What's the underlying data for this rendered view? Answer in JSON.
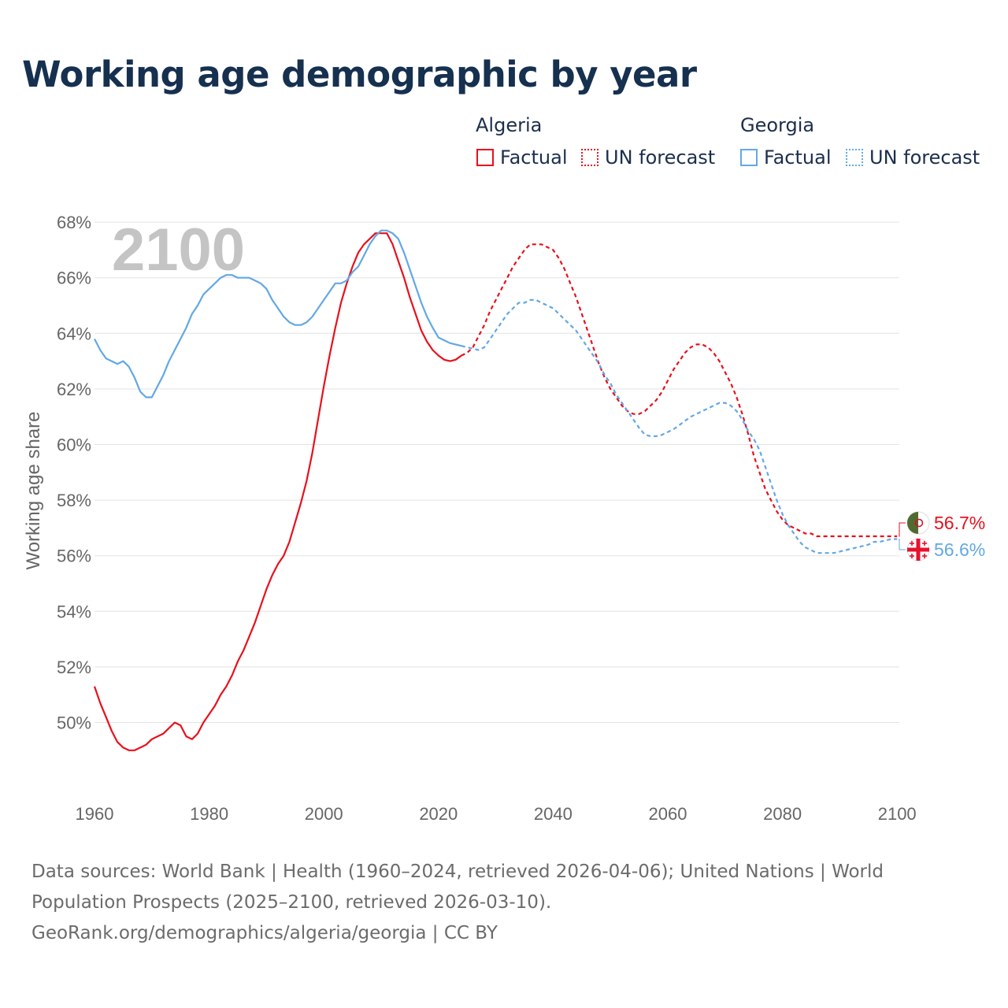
{
  "title": "Working age demographic by year",
  "colors": {
    "algeria": "#e8101c",
    "georgia": "#62a8e5",
    "grid": "#e3e3e3",
    "year_watermark": "#c4c4c4"
  },
  "legend": {
    "algeria": {
      "name": "Algeria",
      "factual": "Factual",
      "forecast": "UN forecast"
    },
    "georgia": {
      "name": "Georgia",
      "factual": "Factual",
      "forecast": "UN forecast"
    }
  },
  "footer": {
    "line1": "Data sources: World Bank | Health (1960–2024, retrieved 2026-04-06); United Nations | World",
    "line2": "Population Prospects (2025–2100, retrieved 2026-03-10).",
    "line3": "GeoRank.org/demographics/algeria/georgia | CC BY"
  },
  "chart_data": {
    "type": "line",
    "current_year_label": "2100",
    "ylabel": "Working age share",
    "xlabel": "",
    "xlim": [
      1960,
      2103
    ],
    "ylim": [
      48,
      68
    ],
    "x_ticks": [
      "1960",
      "1980",
      "2000",
      "2020",
      "2040",
      "2060",
      "2080",
      "2100"
    ],
    "y_ticks": [
      "50%",
      "52%",
      "54%",
      "56%",
      "58%",
      "60%",
      "62%",
      "64%",
      "66%",
      "68%"
    ],
    "end_labels": [
      {
        "series": "Algeria",
        "text": "56.7%",
        "flag": "algeria-flag-icon"
      },
      {
        "series": "Georgia",
        "text": "56.6%",
        "flag": "georgia-flag-icon"
      }
    ],
    "series": [
      {
        "name": "Algeria",
        "factual_range": "1960–2024",
        "forecast_range": "2025–2100",
        "points": [
          [
            1960,
            51.3
          ],
          [
            1961,
            50.7
          ],
          [
            1962,
            50.2
          ],
          [
            1963,
            49.7
          ],
          [
            1964,
            49.3
          ],
          [
            1965,
            49.1
          ],
          [
            1966,
            49.0
          ],
          [
            1967,
            49.0
          ],
          [
            1968,
            49.1
          ],
          [
            1969,
            49.2
          ],
          [
            1970,
            49.4
          ],
          [
            1971,
            49.5
          ],
          [
            1972,
            49.6
          ],
          [
            1973,
            49.8
          ],
          [
            1974,
            50.0
          ],
          [
            1975,
            49.9
          ],
          [
            1976,
            49.5
          ],
          [
            1977,
            49.4
          ],
          [
            1978,
            49.6
          ],
          [
            1979,
            50.0
          ],
          [
            1980,
            50.3
          ],
          [
            1981,
            50.6
          ],
          [
            1982,
            51.0
          ],
          [
            1983,
            51.3
          ],
          [
            1984,
            51.7
          ],
          [
            1985,
            52.2
          ],
          [
            1986,
            52.6
          ],
          [
            1987,
            53.1
          ],
          [
            1988,
            53.6
          ],
          [
            1989,
            54.2
          ],
          [
            1990,
            54.8
          ],
          [
            1991,
            55.3
          ],
          [
            1992,
            55.7
          ],
          [
            1993,
            56.0
          ],
          [
            1994,
            56.5
          ],
          [
            1995,
            57.2
          ],
          [
            1996,
            57.9
          ],
          [
            1997,
            58.7
          ],
          [
            1998,
            59.7
          ],
          [
            1999,
            60.9
          ],
          [
            2000,
            62.1
          ],
          [
            2001,
            63.2
          ],
          [
            2002,
            64.2
          ],
          [
            2003,
            65.1
          ],
          [
            2004,
            65.8
          ],
          [
            2005,
            66.4
          ],
          [
            2006,
            66.9
          ],
          [
            2007,
            67.2
          ],
          [
            2008,
            67.4
          ],
          [
            2009,
            67.6
          ],
          [
            2010,
            67.6
          ],
          [
            2011,
            67.6
          ],
          [
            2012,
            67.2
          ],
          [
            2013,
            66.6
          ],
          [
            2014,
            66.0
          ],
          [
            2015,
            65.3
          ],
          [
            2016,
            64.7
          ],
          [
            2017,
            64.1
          ],
          [
            2018,
            63.7
          ],
          [
            2019,
            63.4
          ],
          [
            2020,
            63.2
          ],
          [
            2021,
            63.05
          ],
          [
            2022,
            63.0
          ],
          [
            2023,
            63.05
          ],
          [
            2024,
            63.2
          ],
          [
            2025,
            63.3
          ],
          [
            2026,
            63.5
          ],
          [
            2027,
            63.9
          ],
          [
            2028,
            64.3
          ],
          [
            2029,
            64.8
          ],
          [
            2030,
            65.2
          ],
          [
            2031,
            65.6
          ],
          [
            2032,
            66.0
          ],
          [
            2033,
            66.4
          ],
          [
            2034,
            66.7
          ],
          [
            2035,
            67.0
          ],
          [
            2036,
            67.2
          ],
          [
            2037,
            67.2
          ],
          [
            2038,
            67.2
          ],
          [
            2039,
            67.1
          ],
          [
            2040,
            67.0
          ],
          [
            2041,
            66.7
          ],
          [
            2042,
            66.3
          ],
          [
            2043,
            65.8
          ],
          [
            2044,
            65.3
          ],
          [
            2045,
            64.7
          ],
          [
            2046,
            64.1
          ],
          [
            2047,
            63.5
          ],
          [
            2048,
            62.9
          ],
          [
            2049,
            62.4
          ],
          [
            2050,
            62.0
          ],
          [
            2051,
            61.7
          ],
          [
            2052,
            61.4
          ],
          [
            2053,
            61.2
          ],
          [
            2054,
            61.1
          ],
          [
            2055,
            61.1
          ],
          [
            2056,
            61.2
          ],
          [
            2057,
            61.4
          ],
          [
            2058,
            61.6
          ],
          [
            2059,
            61.9
          ],
          [
            2060,
            62.3
          ],
          [
            2061,
            62.7
          ],
          [
            2062,
            63.0
          ],
          [
            2063,
            63.3
          ],
          [
            2064,
            63.5
          ],
          [
            2065,
            63.6
          ],
          [
            2066,
            63.6
          ],
          [
            2067,
            63.5
          ],
          [
            2068,
            63.3
          ],
          [
            2069,
            63.0
          ],
          [
            2070,
            62.6
          ],
          [
            2071,
            62.2
          ],
          [
            2072,
            61.7
          ],
          [
            2073,
            61.1
          ],
          [
            2074,
            60.4
          ],
          [
            2075,
            59.6
          ],
          [
            2076,
            59.0
          ],
          [
            2077,
            58.4
          ],
          [
            2078,
            58.0
          ],
          [
            2079,
            57.6
          ],
          [
            2080,
            57.3
          ],
          [
            2081,
            57.1
          ],
          [
            2082,
            57.0
          ],
          [
            2083,
            56.9
          ],
          [
            2084,
            56.8
          ],
          [
            2085,
            56.8
          ],
          [
            2086,
            56.7
          ],
          [
            2087,
            56.7
          ],
          [
            2088,
            56.7
          ],
          [
            2089,
            56.7
          ],
          [
            2090,
            56.7
          ],
          [
            2091,
            56.7
          ],
          [
            2092,
            56.7
          ],
          [
            2093,
            56.7
          ],
          [
            2094,
            56.7
          ],
          [
            2095,
            56.7
          ],
          [
            2096,
            56.7
          ],
          [
            2097,
            56.7
          ],
          [
            2098,
            56.7
          ],
          [
            2099,
            56.7
          ],
          [
            2100,
            56.7
          ]
        ]
      },
      {
        "name": "Georgia",
        "factual_range": "1960–2024",
        "forecast_range": "2025–2100",
        "points": [
          [
            1960,
            63.8
          ],
          [
            1961,
            63.4
          ],
          [
            1962,
            63.1
          ],
          [
            1963,
            63.0
          ],
          [
            1964,
            62.9
          ],
          [
            1965,
            63.0
          ],
          [
            1966,
            62.8
          ],
          [
            1967,
            62.4
          ],
          [
            1968,
            61.9
          ],
          [
            1969,
            61.7
          ],
          [
            1970,
            61.7
          ],
          [
            1971,
            62.1
          ],
          [
            1972,
            62.5
          ],
          [
            1973,
            63.0
          ],
          [
            1974,
            63.4
          ],
          [
            1975,
            63.8
          ],
          [
            1976,
            64.2
          ],
          [
            1977,
            64.7
          ],
          [
            1978,
            65.0
          ],
          [
            1979,
            65.4
          ],
          [
            1980,
            65.6
          ],
          [
            1981,
            65.8
          ],
          [
            1982,
            66.0
          ],
          [
            1983,
            66.1
          ],
          [
            1984,
            66.1
          ],
          [
            1985,
            66.0
          ],
          [
            1986,
            66.0
          ],
          [
            1987,
            66.0
          ],
          [
            1988,
            65.9
          ],
          [
            1989,
            65.8
          ],
          [
            1990,
            65.6
          ],
          [
            1991,
            65.2
          ],
          [
            1992,
            64.9
          ],
          [
            1993,
            64.6
          ],
          [
            1994,
            64.4
          ],
          [
            1995,
            64.3
          ],
          [
            1996,
            64.3
          ],
          [
            1997,
            64.4
          ],
          [
            1998,
            64.6
          ],
          [
            1999,
            64.9
          ],
          [
            2000,
            65.2
          ],
          [
            2001,
            65.5
          ],
          [
            2002,
            65.8
          ],
          [
            2003,
            65.8
          ],
          [
            2004,
            65.9
          ],
          [
            2005,
            66.2
          ],
          [
            2006,
            66.4
          ],
          [
            2007,
            66.8
          ],
          [
            2008,
            67.2
          ],
          [
            2009,
            67.5
          ],
          [
            2010,
            67.7
          ],
          [
            2011,
            67.7
          ],
          [
            2012,
            67.6
          ],
          [
            2013,
            67.4
          ],
          [
            2014,
            66.9
          ],
          [
            2015,
            66.3
          ],
          [
            2016,
            65.7
          ],
          [
            2017,
            65.1
          ],
          [
            2018,
            64.6
          ],
          [
            2019,
            64.2
          ],
          [
            2020,
            63.85
          ],
          [
            2021,
            63.75
          ],
          [
            2022,
            63.65
          ],
          [
            2023,
            63.6
          ],
          [
            2024,
            63.55
          ],
          [
            2025,
            63.5
          ],
          [
            2026,
            63.45
          ],
          [
            2027,
            63.4
          ],
          [
            2028,
            63.5
          ],
          [
            2029,
            63.8
          ],
          [
            2030,
            64.1
          ],
          [
            2031,
            64.4
          ],
          [
            2032,
            64.7
          ],
          [
            2033,
            64.9
          ],
          [
            2034,
            65.1
          ],
          [
            2035,
            65.1
          ],
          [
            2036,
            65.2
          ],
          [
            2037,
            65.2
          ],
          [
            2038,
            65.1
          ],
          [
            2039,
            65.0
          ],
          [
            2040,
            64.9
          ],
          [
            2041,
            64.7
          ],
          [
            2042,
            64.5
          ],
          [
            2043,
            64.3
          ],
          [
            2044,
            64.1
          ],
          [
            2045,
            63.8
          ],
          [
            2046,
            63.5
          ],
          [
            2047,
            63.2
          ],
          [
            2048,
            62.9
          ],
          [
            2049,
            62.5
          ],
          [
            2050,
            62.2
          ],
          [
            2051,
            61.8
          ],
          [
            2052,
            61.5
          ],
          [
            2053,
            61.2
          ],
          [
            2054,
            60.9
          ],
          [
            2055,
            60.6
          ],
          [
            2056,
            60.35
          ],
          [
            2057,
            60.3
          ],
          [
            2058,
            60.3
          ],
          [
            2059,
            60.35
          ],
          [
            2060,
            60.45
          ],
          [
            2061,
            60.55
          ],
          [
            2062,
            60.7
          ],
          [
            2063,
            60.85
          ],
          [
            2064,
            61.0
          ],
          [
            2065,
            61.1
          ],
          [
            2066,
            61.2
          ],
          [
            2067,
            61.3
          ],
          [
            2068,
            61.4
          ],
          [
            2069,
            61.5
          ],
          [
            2070,
            61.5
          ],
          [
            2071,
            61.4
          ],
          [
            2072,
            61.2
          ],
          [
            2073,
            60.9
          ],
          [
            2074,
            60.5
          ],
          [
            2075,
            60.2
          ],
          [
            2076,
            59.8
          ],
          [
            2077,
            59.2
          ],
          [
            2078,
            58.6
          ],
          [
            2079,
            58.0
          ],
          [
            2080,
            57.5
          ],
          [
            2081,
            57.1
          ],
          [
            2082,
            56.8
          ],
          [
            2083,
            56.5
          ],
          [
            2084,
            56.3
          ],
          [
            2085,
            56.2
          ],
          [
            2086,
            56.1
          ],
          [
            2087,
            56.1
          ],
          [
            2088,
            56.1
          ],
          [
            2089,
            56.1
          ],
          [
            2090,
            56.15
          ],
          [
            2091,
            56.2
          ],
          [
            2092,
            56.25
          ],
          [
            2093,
            56.3
          ],
          [
            2094,
            56.35
          ],
          [
            2095,
            56.4
          ],
          [
            2096,
            56.5
          ],
          [
            2097,
            56.5
          ],
          [
            2098,
            56.55
          ],
          [
            2099,
            56.6
          ],
          [
            2100,
            56.6
          ]
        ]
      }
    ]
  }
}
